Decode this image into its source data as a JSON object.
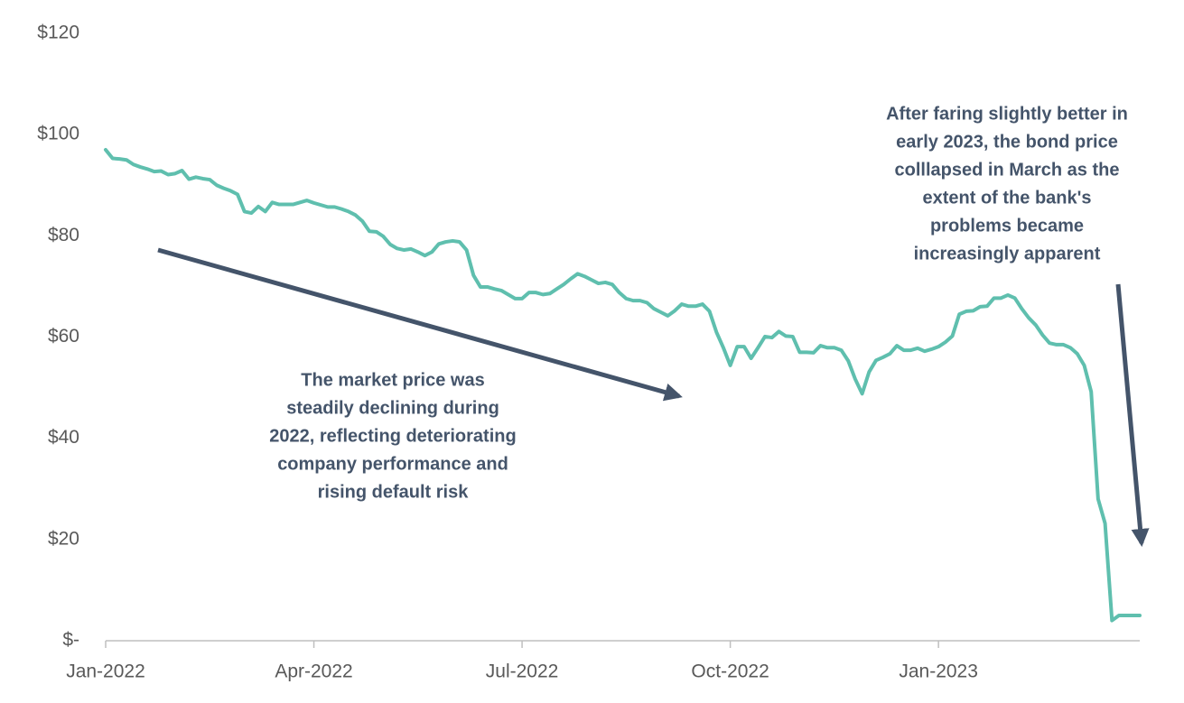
{
  "chart_data": {
    "type": "line",
    "color": "#5fbfae",
    "grid": false,
    "ylim": [
      0,
      120
    ],
    "yticks": [
      {
        "value": 0,
        "label": "$-"
      },
      {
        "value": 20,
        "label": "$20"
      },
      {
        "value": 40,
        "label": "$40"
      },
      {
        "value": 60,
        "label": "$60"
      },
      {
        "value": 80,
        "label": "$80"
      },
      {
        "value": 100,
        "label": "$100"
      },
      {
        "value": 120,
        "label": "$120"
      }
    ],
    "categories": [
      "Jan-2022",
      null,
      null,
      null,
      null,
      null,
      null,
      null,
      null,
      null,
      null,
      null,
      null,
      null,
      null,
      null,
      null,
      null,
      null,
      null,
      null,
      null,
      null,
      null,
      null,
      null,
      null,
      null,
      null,
      null,
      "Apr-2022",
      null,
      null,
      null,
      null,
      null,
      null,
      null,
      null,
      null,
      null,
      null,
      null,
      null,
      null,
      null,
      null,
      null,
      null,
      null,
      null,
      null,
      null,
      null,
      null,
      null,
      null,
      null,
      null,
      null,
      "Jul-2022",
      null,
      null,
      null,
      null,
      null,
      null,
      null,
      null,
      null,
      null,
      null,
      null,
      null,
      null,
      null,
      null,
      null,
      null,
      null,
      null,
      null,
      null,
      null,
      null,
      null,
      null,
      null,
      null,
      null,
      "Oct-2022",
      null,
      null,
      null,
      null,
      null,
      null,
      null,
      null,
      null,
      null,
      null,
      null,
      null,
      null,
      null,
      null,
      null,
      null,
      null,
      null,
      null,
      null,
      null,
      null,
      null,
      null,
      null,
      null,
      null,
      "Jan-2023",
      null,
      null,
      null,
      null,
      null,
      null,
      null,
      null,
      null,
      null,
      null,
      null,
      null,
      null,
      null,
      null,
      null,
      null,
      null,
      null,
      null,
      null,
      null,
      null,
      null,
      null,
      null,
      null,
      null
    ],
    "values": [
      97,
      95.3,
      95.2,
      95,
      94.1,
      93.6,
      93.2,
      92.7,
      92.8,
      92.1,
      92.3,
      92.9,
      91.2,
      91.6,
      91.3,
      91.1,
      90,
      89.4,
      88.9,
      88.2,
      84.8,
      84.5,
      85.8,
      84.8,
      86.6,
      86.2,
      86.2,
      86.2,
      86.6,
      87,
      86.5,
      86.1,
      85.7,
      85.7,
      85.3,
      84.8,
      84.1,
      82.9,
      80.9,
      80.8,
      79.9,
      78.3,
      77.5,
      77.2,
      77.4,
      76.8,
      76.1,
      76.8,
      78.4,
      78.8,
      79,
      78.8,
      77.2,
      72.2,
      69.9,
      69.9,
      69.5,
      69.2,
      68.4,
      67.6,
      67.6,
      68.8,
      68.8,
      68.4,
      68.6,
      69.5,
      70.4,
      71.5,
      72.5,
      72,
      71.3,
      70.6,
      70.8,
      70.4,
      68.8,
      67.6,
      67.2,
      67.2,
      66.8,
      65.6,
      64.9,
      64.2,
      65.2,
      66.5,
      66.1,
      66.1,
      66.5,
      65.1,
      61,
      57.9,
      54.4,
      58.1,
      58.1,
      55.8,
      57.9,
      60.1,
      59.9,
      61.1,
      60.2,
      60.1,
      57,
      57,
      56.9,
      58.3,
      57.9,
      57.9,
      57.4,
      55.3,
      51.7,
      48.8,
      53.1,
      55.4,
      56,
      56.7,
      58.3,
      57.4,
      57.4,
      57.8,
      57.2,
      57.6,
      58.1,
      59,
      60.2,
      64.5,
      65.1,
      65.2,
      66,
      66.1,
      67.7,
      67.7,
      68.3,
      67.7,
      65.6,
      63.8,
      62.4,
      60.4,
      58.8,
      58.5,
      58.5,
      57.9,
      56.7,
      54.4,
      49.2,
      28,
      23.2,
      4,
      5,
      5,
      5,
      5
    ],
    "annotations": [
      {
        "lines": [
          "The market price was",
          "steadily declining during",
          "2022, reflecting deteriorating",
          "company performance and",
          "rising default risk"
        ]
      },
      {
        "lines": [
          "After faring slightly better in",
          "early 2023, the bond price",
          "colllapsed in March as the",
          "extent of the bank's",
          "problems became",
          "increasingly apparent"
        ]
      }
    ]
  }
}
